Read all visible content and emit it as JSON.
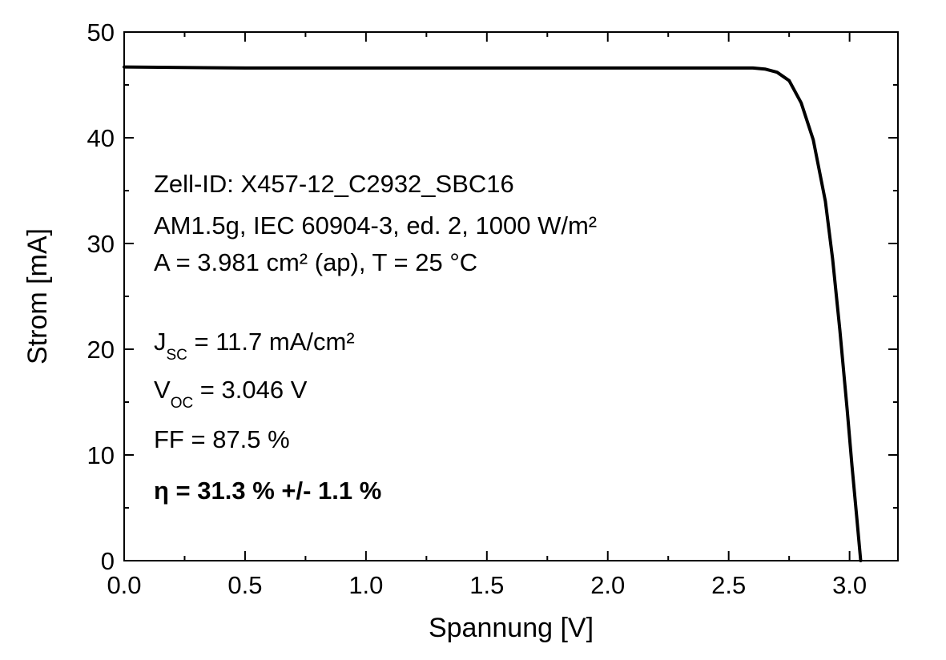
{
  "chart_data": {
    "type": "line",
    "xlabel": "Spannung [V]",
    "ylabel": "Strom [mA]",
    "xlim": [
      0.0,
      3.2
    ],
    "ylim": [
      0,
      50
    ],
    "x_ticks": [
      "0.0",
      "0.5",
      "1.0",
      "1.5",
      "2.0",
      "2.5",
      "3.0"
    ],
    "y_ticks": [
      "0",
      "10",
      "20",
      "30",
      "40",
      "50"
    ],
    "grid": false,
    "legend": "none",
    "line_color": "#000000",
    "series": [
      {
        "x": [
          0.0,
          0.5,
          1.0,
          1.5,
          2.0,
          2.5,
          2.6,
          2.65,
          2.7,
          2.75,
          2.8,
          2.85,
          2.9,
          2.93,
          2.96,
          2.99,
          3.01,
          3.03,
          3.046
        ],
        "y": [
          46.7,
          46.6,
          46.6,
          46.6,
          46.6,
          46.6,
          46.6,
          46.5,
          46.2,
          45.4,
          43.3,
          39.8,
          34.0,
          28.5,
          21.8,
          14.3,
          9.0,
          4.0,
          0.0
        ]
      }
    ],
    "annotations": {
      "cell_id": "Zell-ID: X457-12_C2932_SBC16",
      "conditions": "AM1.5g, IEC 60904-3, ed. 2, 1000 W/m²",
      "area_temp": "A = 3.981 cm² (ap), T = 25 °C",
      "jsc": {
        "symbol": "J",
        "sub": "SC",
        "value": " = 11.7 mA/cm²"
      },
      "voc": {
        "symbol": "V",
        "sub": "OC",
        "value": " = 3.046 V"
      },
      "ff": "FF = 87.5 %",
      "eta": "η = 31.3 % +/- 1.1 %"
    }
  }
}
